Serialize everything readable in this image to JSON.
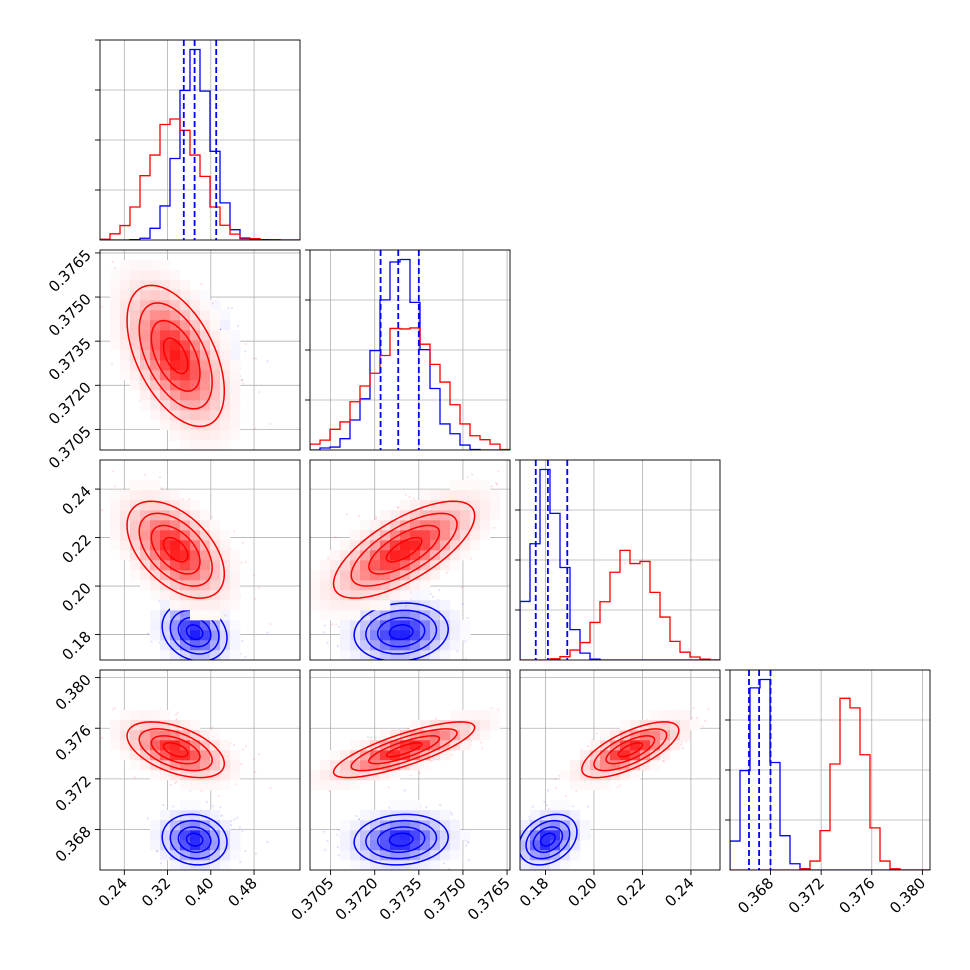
{
  "chart_data": {
    "type": "corner",
    "title": "",
    "colors": {
      "blue": "#0000ff",
      "red": "#ff0000",
      "grid": "#b0b0b0",
      "axis": "#000000"
    },
    "series": [
      {
        "name": "blue",
        "color": "#0000ff",
        "means": [
          0.37,
          0.3729,
          0.181,
          0.3672
        ],
        "sds": [
          0.03,
          0.0008,
          0.006,
          0.001
        ],
        "corr": [
          [
            1.0,
            0.0,
            -0.2,
            -0.1
          ],
          [
            0.0,
            1.0,
            0.1,
            0.1
          ],
          [
            -0.2,
            0.1,
            1.0,
            0.3
          ],
          [
            -0.1,
            0.1,
            0.3,
            1.0
          ]
        ],
        "quantiles": [
          [
            0.35,
            0.37,
            0.41
          ],
          [
            0.3722,
            0.3728,
            0.3735
          ],
          [
            0.176,
            0.181,
            0.189
          ],
          [
            0.3663,
            0.3671,
            0.368
          ]
        ]
      },
      {
        "name": "red",
        "color": "#ff0000",
        "means": [
          0.335,
          0.373,
          0.215,
          0.3743
        ],
        "sds": [
          0.045,
          0.0012,
          0.01,
          0.0011
        ],
        "corr": [
          [
            1.0,
            -0.5,
            -0.5,
            -0.5
          ],
          [
            -0.5,
            1.0,
            0.7,
            0.8
          ],
          [
            -0.5,
            0.7,
            1.0,
            0.7
          ],
          [
            -0.5,
            0.8,
            0.7,
            1.0
          ]
        ]
      }
    ],
    "params": [
      {
        "range": [
          0.195,
          0.565
        ],
        "ticks": [
          0.24,
          0.32,
          0.4,
          0.48
        ],
        "tick_labels": [
          "0.24",
          "0.32",
          "0.40",
          "0.48"
        ]
      },
      {
        "range": [
          0.3698,
          0.3766
        ],
        "ticks": [
          0.3705,
          0.372,
          0.3735,
          0.375,
          0.3765
        ],
        "tick_labels": [
          "0.3705",
          "0.3720",
          "0.3735",
          "0.3750",
          "0.3765"
        ]
      },
      {
        "range": [
          0.1695,
          0.252
        ],
        "ticks": [
          0.18,
          0.2,
          0.22,
          0.24
        ],
        "tick_labels": [
          "0.18",
          "0.20",
          "0.22",
          "0.24"
        ]
      },
      {
        "range": [
          0.3648,
          0.3806
        ],
        "ticks": [
          0.368,
          0.372,
          0.376,
          0.38
        ],
        "tick_labels": [
          "0.368",
          "0.372",
          "0.376",
          "0.380"
        ]
      }
    ]
  }
}
